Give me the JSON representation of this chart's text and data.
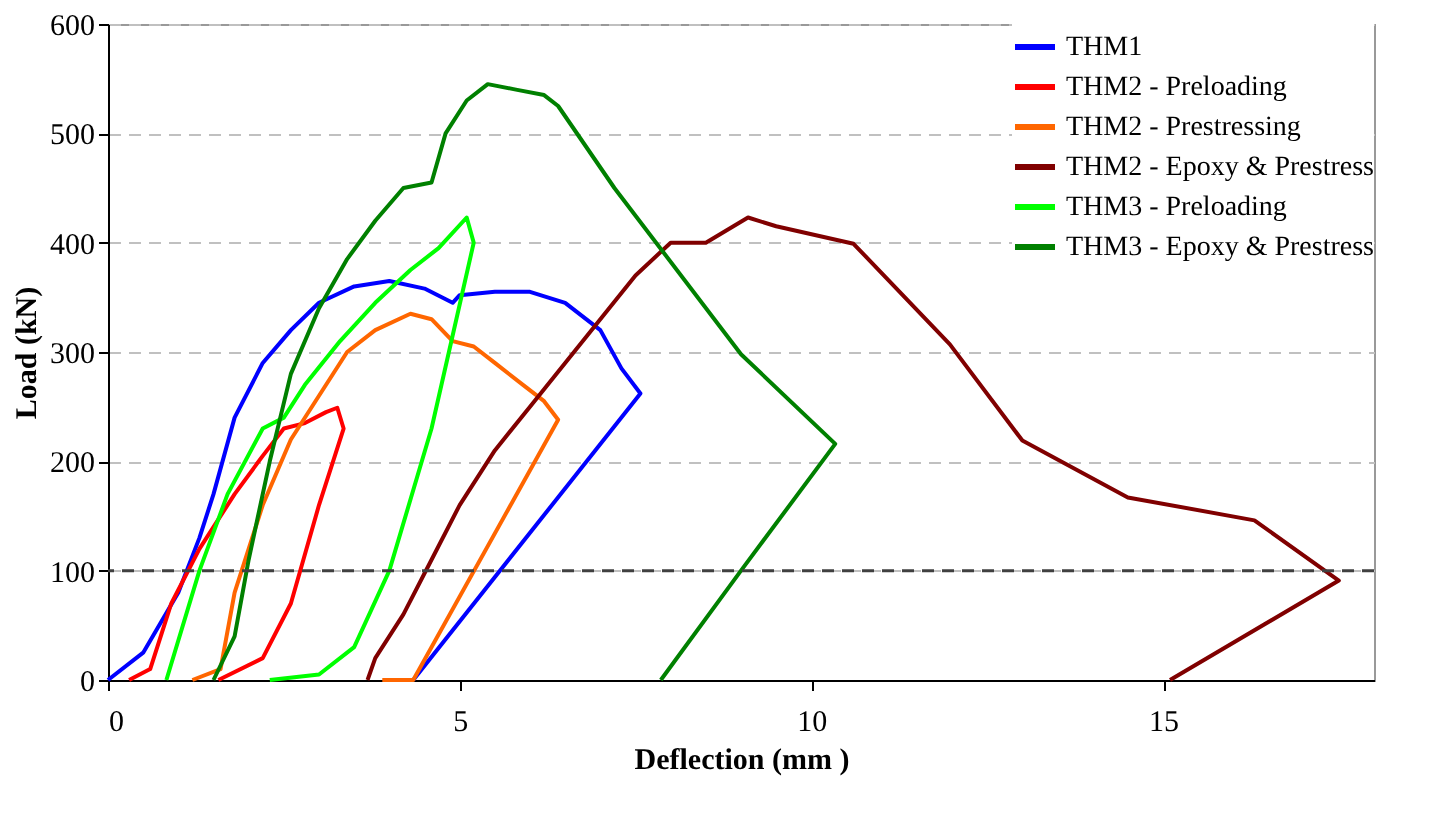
{
  "chart_data": {
    "type": "line",
    "xlabel": "Deflection (mm )",
    "ylabel": "Load (kN)",
    "xlim": [
      0,
      18
    ],
    "xticks": [
      0,
      5,
      10,
      15
    ],
    "ylim": [
      0,
      600
    ],
    "yticks": [
      0,
      100,
      200,
      300,
      400,
      500,
      600
    ],
    "grid": "y",
    "legend": "top right",
    "marker": "none",
    "line_style": "solid",
    "ref_lines": [
      {
        "axis": "y",
        "value": 100,
        "color": "#404040",
        "line_style": "dashed"
      }
    ],
    "series": [
      {
        "name": "THM1",
        "color": "#0000ff",
        "x": [
          0,
          0.5,
          1,
          1.3,
          1.5,
          1.8,
          2.2,
          2.6,
          3,
          3.5,
          4,
          4.5,
          4.9,
          5,
          5.5,
          6,
          6.5,
          7,
          7.3,
          7.57,
          4.34
        ],
        "values": [
          0,
          25,
          80,
          130,
          170,
          240,
          290,
          320,
          345,
          360,
          365,
          358,
          345,
          352,
          355,
          355,
          345,
          320,
          285,
          262,
          0
        ]
      },
      {
        "name": "THM2 - Preloading",
        "color": "#ff0000",
        "x": [
          0.3,
          0.6,
          0.9,
          1.3,
          1.8,
          2.2,
          2.5,
          2.8,
          3.1,
          3.26,
          3.35,
          3,
          2.6,
          2.2,
          1.57
        ],
        "values": [
          0,
          10,
          70,
          120,
          170,
          205,
          230,
          235,
          245,
          249,
          230,
          160,
          70,
          20,
          0
        ]
      },
      {
        "name": "THM2 - Prestressing",
        "color": "#ff6600",
        "x": [
          1.2,
          1.6,
          1.8,
          2.2,
          2.6,
          3,
          3.4,
          3.8,
          4.3,
          4.6,
          4.9,
          5.2,
          5.5,
          5.9,
          6.2,
          6.4,
          4.34,
          4.1,
          3.9
        ],
        "values": [
          0,
          10,
          80,
          160,
          220,
          260,
          300,
          320,
          335,
          330,
          310,
          305,
          290,
          270,
          255,
          238,
          0,
          0,
          0
        ]
      },
      {
        "name": "THM2 - Epoxy & Prestress",
        "color": "#800000",
        "x": [
          3.69,
          3.8,
          4.2,
          4.6,
          5,
          5.5,
          6,
          6.5,
          7,
          7.5,
          8,
          8.5,
          9.1,
          9.5,
          10.6,
          11.97,
          13,
          14.5,
          16.3,
          17.5,
          15.1
        ],
        "values": [
          0,
          20,
          60,
          110,
          160,
          210,
          250,
          290,
          330,
          370,
          400,
          400,
          423,
          415,
          399,
          307,
          219,
          167,
          146,
          91,
          0
        ]
      },
      {
        "name": "THM3 - Preloading",
        "color": "#00ff00",
        "x": [
          0.83,
          1.3,
          1.7,
          2.2,
          2.5,
          2.8,
          3.3,
          3.8,
          4.3,
          4.7,
          5.1,
          5.2,
          4.6,
          4,
          3.5,
          3,
          2.3
        ],
        "values": [
          0,
          100,
          170,
          230,
          240,
          270,
          310,
          345,
          375,
          395,
          423,
          400,
          230,
          100,
          30,
          5,
          0
        ]
      },
      {
        "name": "THM3 - Epoxy & Prestress",
        "color": "#008000",
        "x": [
          1.5,
          1.8,
          2,
          2.3,
          2.6,
          3,
          3.4,
          3.8,
          4.2,
          4.6,
          4.8,
          5.1,
          5.4,
          5.8,
          6.2,
          6.4,
          7.2,
          9,
          10.34,
          9,
          7.86
        ],
        "values": [
          0,
          40,
          110,
          200,
          280,
          340,
          385,
          420,
          450,
          455,
          500,
          530,
          545,
          540,
          535,
          525,
          450,
          298,
          216,
          100,
          0
        ]
      }
    ]
  }
}
